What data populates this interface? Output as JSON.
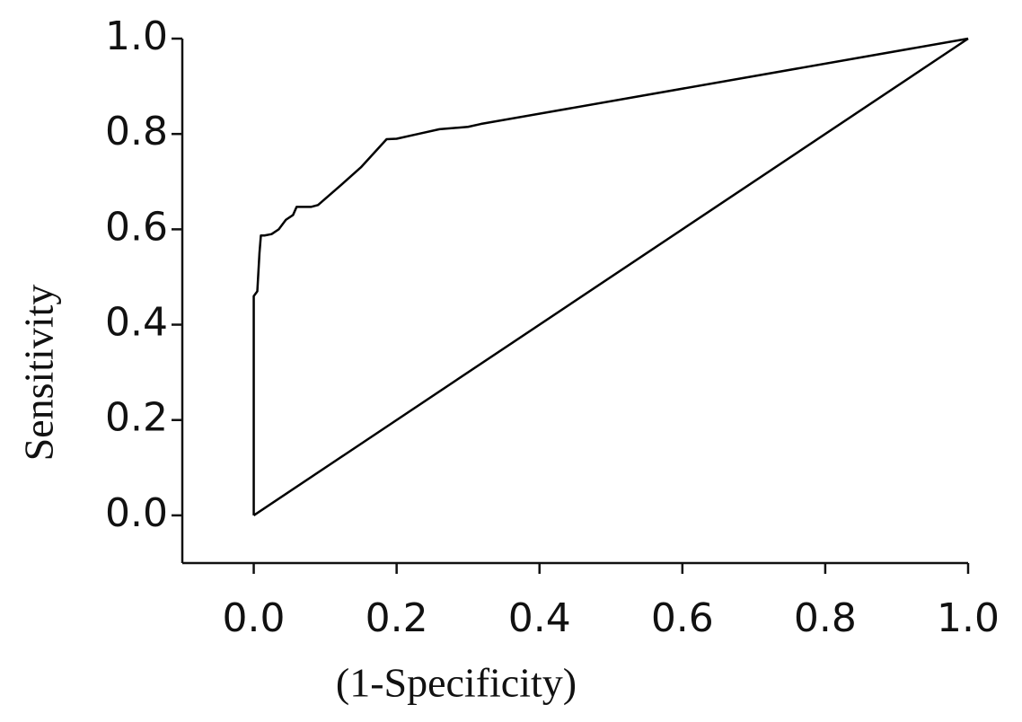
{
  "chart_data": {
    "type": "line",
    "x_label": "(1-Specificity)",
    "y_label": "Sensitivity",
    "xlim": [
      -0.1,
      1.0
    ],
    "ylim": [
      -0.1,
      1.0
    ],
    "xticks": [
      {
        "value": 0,
        "label": "0.0"
      },
      0.2,
      0.4,
      0.6,
      0.8,
      {
        "value": 1,
        "label": "1.0"
      }
    ],
    "yticks": [
      {
        "value": 0,
        "label": "0.0"
      },
      0.2,
      0.4,
      0.6,
      0.8,
      {
        "value": 1,
        "label": "1.0"
      }
    ],
    "series": [
      {
        "color": "#000000",
        "x": [
          0,
          0,
          0.005,
          0.008,
          0.01,
          0.015,
          0.025,
          0.035,
          0.045,
          0.055,
          0.06,
          0.08,
          0.09,
          0.12,
          0.15,
          0.186,
          0.2,
          0.23,
          0.26,
          0.3,
          0.318,
          1
        ],
        "values": [
          0,
          0.46,
          0.47,
          0.55,
          0.587,
          0.587,
          0.59,
          0.6,
          0.62,
          0.63,
          0.647,
          0.647,
          0.651,
          0.69,
          0.73,
          0.789,
          0.79,
          0.8,
          0.81,
          0.815,
          0.821,
          1
        ]
      },
      {
        "color": "#000000",
        "x": [
          0,
          1
        ],
        "values": [
          0,
          1
        ]
      }
    ]
  }
}
